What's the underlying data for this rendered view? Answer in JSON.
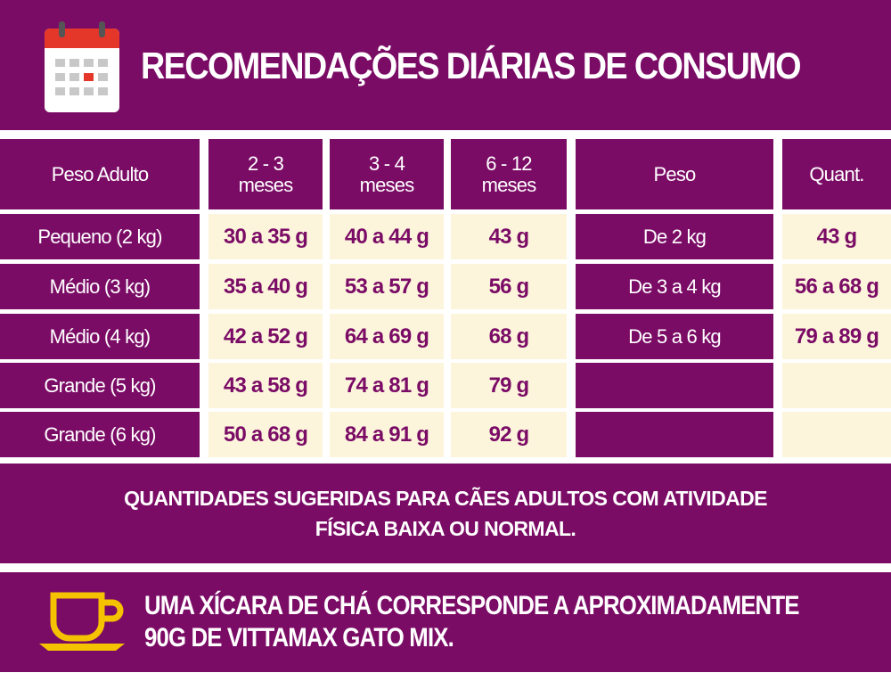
{
  "title": "RECOMENDAÇÕES DIÁRIAS DE CONSUMO",
  "table": {
    "headers": {
      "peso_adulto": "Peso Adulto",
      "col1": [
        "2 - 3",
        "meses"
      ],
      "col2": [
        "3 - 4",
        "meses"
      ],
      "col3": [
        "6 - 12",
        "meses"
      ],
      "peso": "Peso",
      "quant": "Quant."
    },
    "rows": [
      {
        "label": "Pequeno (2 kg)",
        "values": [
          "30 a 35 g",
          "40 a 44 g",
          "43 g"
        ],
        "peso": "De 2 kg",
        "quant": "43 g"
      },
      {
        "label": "Médio (3 kg)",
        "values": [
          "35 a 40 g",
          "53 a 57 g",
          "56 g"
        ],
        "peso": "De 3 a 4 kg",
        "quant": "56 a 68 g"
      },
      {
        "label": "Médio (4 kg)",
        "values": [
          "42 a 52 g",
          "64 a 69 g",
          "68 g"
        ],
        "peso": "De 5 a 6 kg",
        "quant": "79 a 89 g"
      },
      {
        "label": "Grande (5 kg)",
        "values": [
          "43 a 58 g",
          "74 a 81 g",
          "79 g"
        ],
        "peso": "",
        "quant": ""
      },
      {
        "label": "Grande (6 kg)",
        "values": [
          "50 a 68 g",
          "84 a 91 g",
          "92 g"
        ],
        "peso": "",
        "quant": ""
      }
    ]
  },
  "note": [
    "QUANTIDADES SUGERIDAS PARA CÃES ADULTOS COM ATIVIDADE",
    "FÍSICA BAIXA OU NORMAL."
  ],
  "cup_note": [
    "UMA XÍCARA DE CHÁ CORRESPONDE A APROXIMADAMENTE",
    "90G DE VITTAMAX GATO MIX."
  ],
  "icons": {
    "header": "calendar-icon",
    "footer": "teacup-icon"
  },
  "colors": {
    "purple": "#7b0c66",
    "cream": "#fcf5dc",
    "yellow": "#f5c200",
    "red": "#e5362a"
  }
}
